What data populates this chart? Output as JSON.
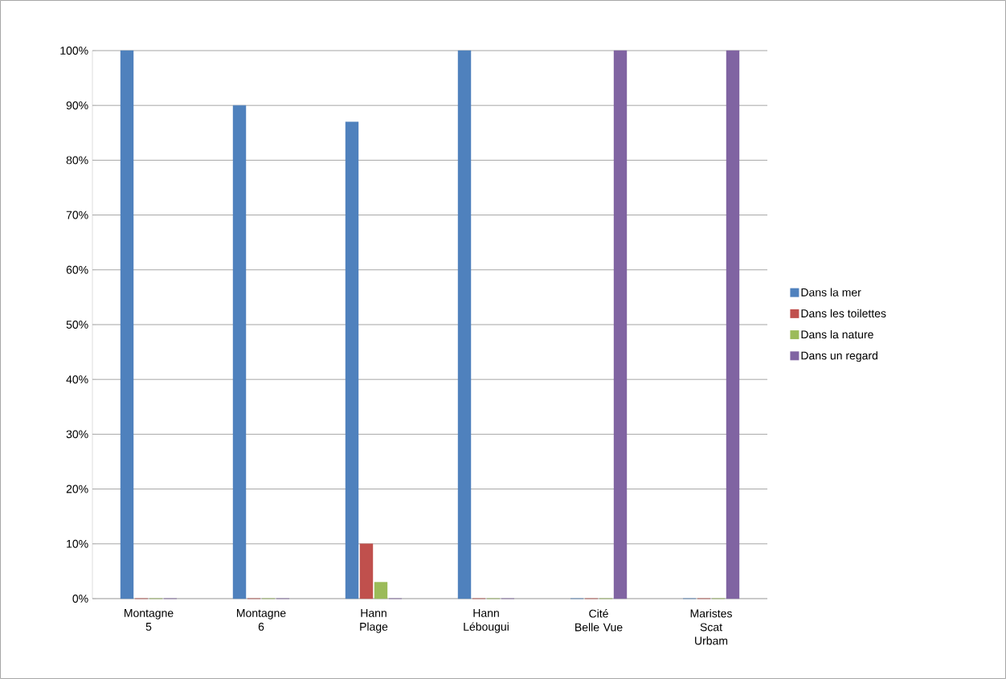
{
  "chart_data": {
    "type": "bar",
    "categories": [
      "Montagne 5",
      "Montagne 6",
      "Hann Plage",
      "Hann Lébougui",
      "Cité Belle Vue",
      "Maristes Scat Urbam"
    ],
    "series": [
      {
        "name": "Dans la mer",
        "color": "#4f81bd",
        "values": [
          100,
          90,
          87,
          100,
          0,
          0
        ]
      },
      {
        "name": "Dans les toilettes",
        "color": "#c0504d",
        "values": [
          0,
          0,
          10,
          0,
          0,
          0
        ]
      },
      {
        "name": "Dans la nature",
        "color": "#9bbb59",
        "values": [
          0,
          0,
          3,
          0,
          0,
          0
        ]
      },
      {
        "name": "Dans un regard",
        "color": "#8064a2",
        "values": [
          0,
          0,
          0,
          0,
          100,
          100
        ]
      }
    ],
    "ylim": [
      0,
      100
    ],
    "yticks": [
      {
        "value": 0,
        "label": "0%"
      },
      {
        "value": 10,
        "label": "10%"
      },
      {
        "value": 20,
        "label": "20%"
      },
      {
        "value": 30,
        "label": "30%"
      },
      {
        "value": 40,
        "label": "40%"
      },
      {
        "value": 50,
        "label": "50%"
      },
      {
        "value": 60,
        "label": "60%"
      },
      {
        "value": 70,
        "label": "70%"
      },
      {
        "value": 80,
        "label": "80%"
      },
      {
        "value": 90,
        "label": "90%"
      },
      {
        "value": 100,
        "label": "100%"
      }
    ],
    "grid": "y",
    "legend": "right"
  }
}
